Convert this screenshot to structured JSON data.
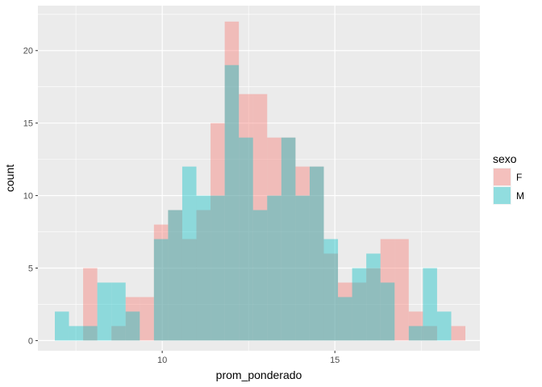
{
  "chart_data": {
    "type": "bar",
    "subtype": "overlapping-histogram",
    "title": "",
    "xlabel": "prom_ponderado",
    "ylabel": "count",
    "x_ticks": [
      10,
      15
    ],
    "y_ticks": [
      0,
      5,
      10,
      15,
      20
    ],
    "xlim": [
      6.4,
      19.2
    ],
    "ylim": [
      -0.7,
      23.1
    ],
    "bin_width": 0.41,
    "grid": true,
    "legend": {
      "title": "sexo",
      "position": "right",
      "entries": [
        "F",
        "M"
      ]
    },
    "bin_starts": [
      6.89,
      7.3,
      7.71,
      8.12,
      8.53,
      8.94,
      9.35,
      9.76,
      10.17,
      10.58,
      10.99,
      11.4,
      11.81,
      12.22,
      12.63,
      13.04,
      13.45,
      13.86,
      14.27,
      14.68,
      15.09,
      15.5,
      15.91,
      16.32,
      16.73,
      17.14,
      17.55,
      17.96,
      18.37
    ],
    "series": [
      {
        "name": "F",
        "color": "#F8766D",
        "values": [
          0,
          0,
          5,
          0,
          1,
          3,
          3,
          8,
          9,
          7,
          9,
          15,
          22,
          17,
          17,
          14,
          14,
          12,
          12,
          6,
          4,
          4,
          5,
          7,
          7,
          2,
          1,
          0,
          1
        ]
      },
      {
        "name": "M",
        "color": "#00BFC4",
        "values": [
          2,
          1,
          1,
          4,
          4,
          2,
          0,
          7,
          9,
          12,
          10,
          10,
          19,
          14,
          9,
          10,
          14,
          10,
          12,
          7,
          3,
          5,
          6,
          4,
          0,
          1,
          5,
          2,
          0
        ]
      }
    ]
  }
}
